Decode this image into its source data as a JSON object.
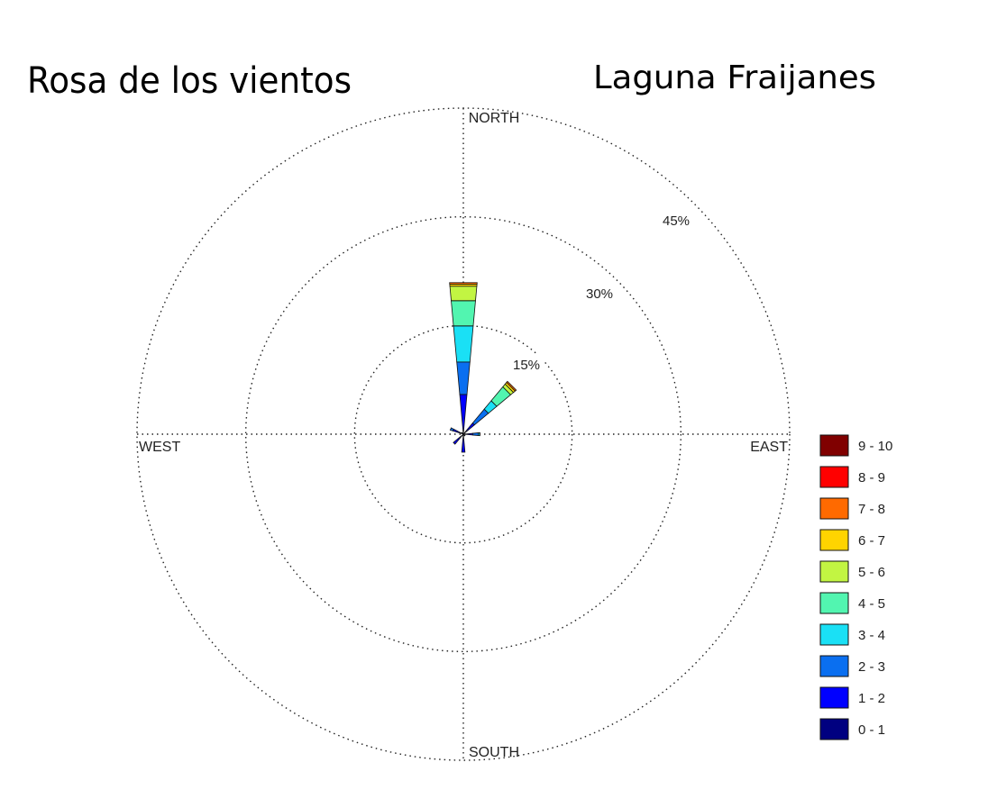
{
  "title": "Rosa de los vientos",
  "subtitle": "Laguna Fraijanes",
  "chart_data": {
    "type": "windrose",
    "title": "Rosa de los vientos",
    "subtitle": "Laguna Fraijanes",
    "directions": {
      "north": "NORTH",
      "east": "EAST",
      "south": "SOUTH",
      "west": "WEST"
    },
    "rings": [
      {
        "value": 15,
        "label": "15%"
      },
      {
        "value": 30,
        "label": "30%"
      },
      {
        "value": 45,
        "label": "45%"
      }
    ],
    "rlim": [
      0,
      45
    ],
    "grid": true,
    "legend_position": "right",
    "bins": [
      {
        "label": "0 - 1",
        "color": "#000080"
      },
      {
        "label": "1 - 2",
        "color": "#0000ff"
      },
      {
        "label": "2 - 3",
        "color": "#0a6ff0"
      },
      {
        "label": "3 - 4",
        "color": "#1ae0f5"
      },
      {
        "label": "4 - 5",
        "color": "#52f5b0"
      },
      {
        "label": "5 - 6",
        "color": "#c2f542"
      },
      {
        "label": "6 - 7",
        "color": "#ffd400"
      },
      {
        "label": "7 - 8",
        "color": "#ff6a00"
      },
      {
        "label": "8 - 9",
        "color": "#ff0000"
      },
      {
        "label": "9 - 10",
        "color": "#800000"
      }
    ],
    "petals": [
      {
        "direction_deg": 0,
        "cumulative_percent": [
          0.2,
          5.5,
          10.0,
          15.0,
          18.5,
          20.5,
          20.8,
          21.0
        ]
      },
      {
        "direction_deg": 45,
        "cumulative_percent": [
          0.1,
          2.0,
          4.5,
          6.0,
          8.5,
          9.0,
          9.3,
          9.5
        ]
      },
      {
        "direction_deg": 90,
        "cumulative_percent": [
          0.05,
          1.3,
          2.1,
          2.3
        ]
      },
      {
        "direction_deg": 135,
        "cumulative_percent": [
          0.1,
          0.3
        ]
      },
      {
        "direction_deg": 180,
        "cumulative_percent": [
          0.1,
          2.5
        ]
      },
      {
        "direction_deg": 225,
        "cumulative_percent": [
          0.1,
          1.8
        ]
      },
      {
        "direction_deg": 292.5,
        "cumulative_percent": [
          0.1,
          1.5,
          1.9
        ]
      },
      {
        "direction_deg": 315,
        "cumulative_percent": [
          0.1,
          0.3
        ]
      }
    ]
  }
}
